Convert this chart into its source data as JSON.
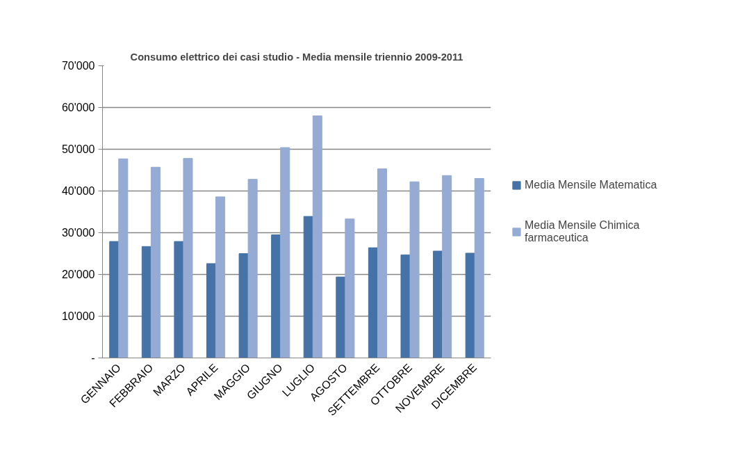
{
  "chart_data": {
    "type": "bar",
    "title": "Consumo elettrico dei casi studio - Media mensile triennio 2009-2011",
    "categories": [
      "GENNAIO",
      "FEBBRAIO",
      "MARZO",
      "APRILE",
      "MAGGIO",
      "GIUGNO",
      "LUGLIO",
      "AGOSTO",
      "SETTEMBRE",
      "OTTOBRE",
      "NOVEMBRE",
      "DICEMBRE"
    ],
    "series": [
      {
        "name": "Media Mensile Matematica",
        "color": "#4572a7",
        "values": [
          27900,
          26700,
          27900,
          22600,
          25000,
          29500,
          33900,
          19400,
          26400,
          24700,
          25600,
          25100
        ]
      },
      {
        "name": "Media Mensile Chimica farmaceutica",
        "color": "#95abd3",
        "values": [
          47700,
          45700,
          47800,
          38600,
          42800,
          50400,
          58000,
          33300,
          45300,
          42200,
          43700,
          43000
        ]
      }
    ],
    "ylim": [
      0,
      70000
    ],
    "yticks": [
      {
        "value": 0,
        "label": "-"
      },
      {
        "value": 10000,
        "label": "10'000"
      },
      {
        "value": 20000,
        "label": "20'000"
      },
      {
        "value": 30000,
        "label": "30'000"
      },
      {
        "value": 40000,
        "label": "40'000"
      },
      {
        "value": 50000,
        "label": "50'000"
      },
      {
        "value": 60000,
        "label": "60'000"
      },
      {
        "value": 70000,
        "label": "70'000"
      }
    ],
    "grid": "y",
    "legend": "right"
  }
}
